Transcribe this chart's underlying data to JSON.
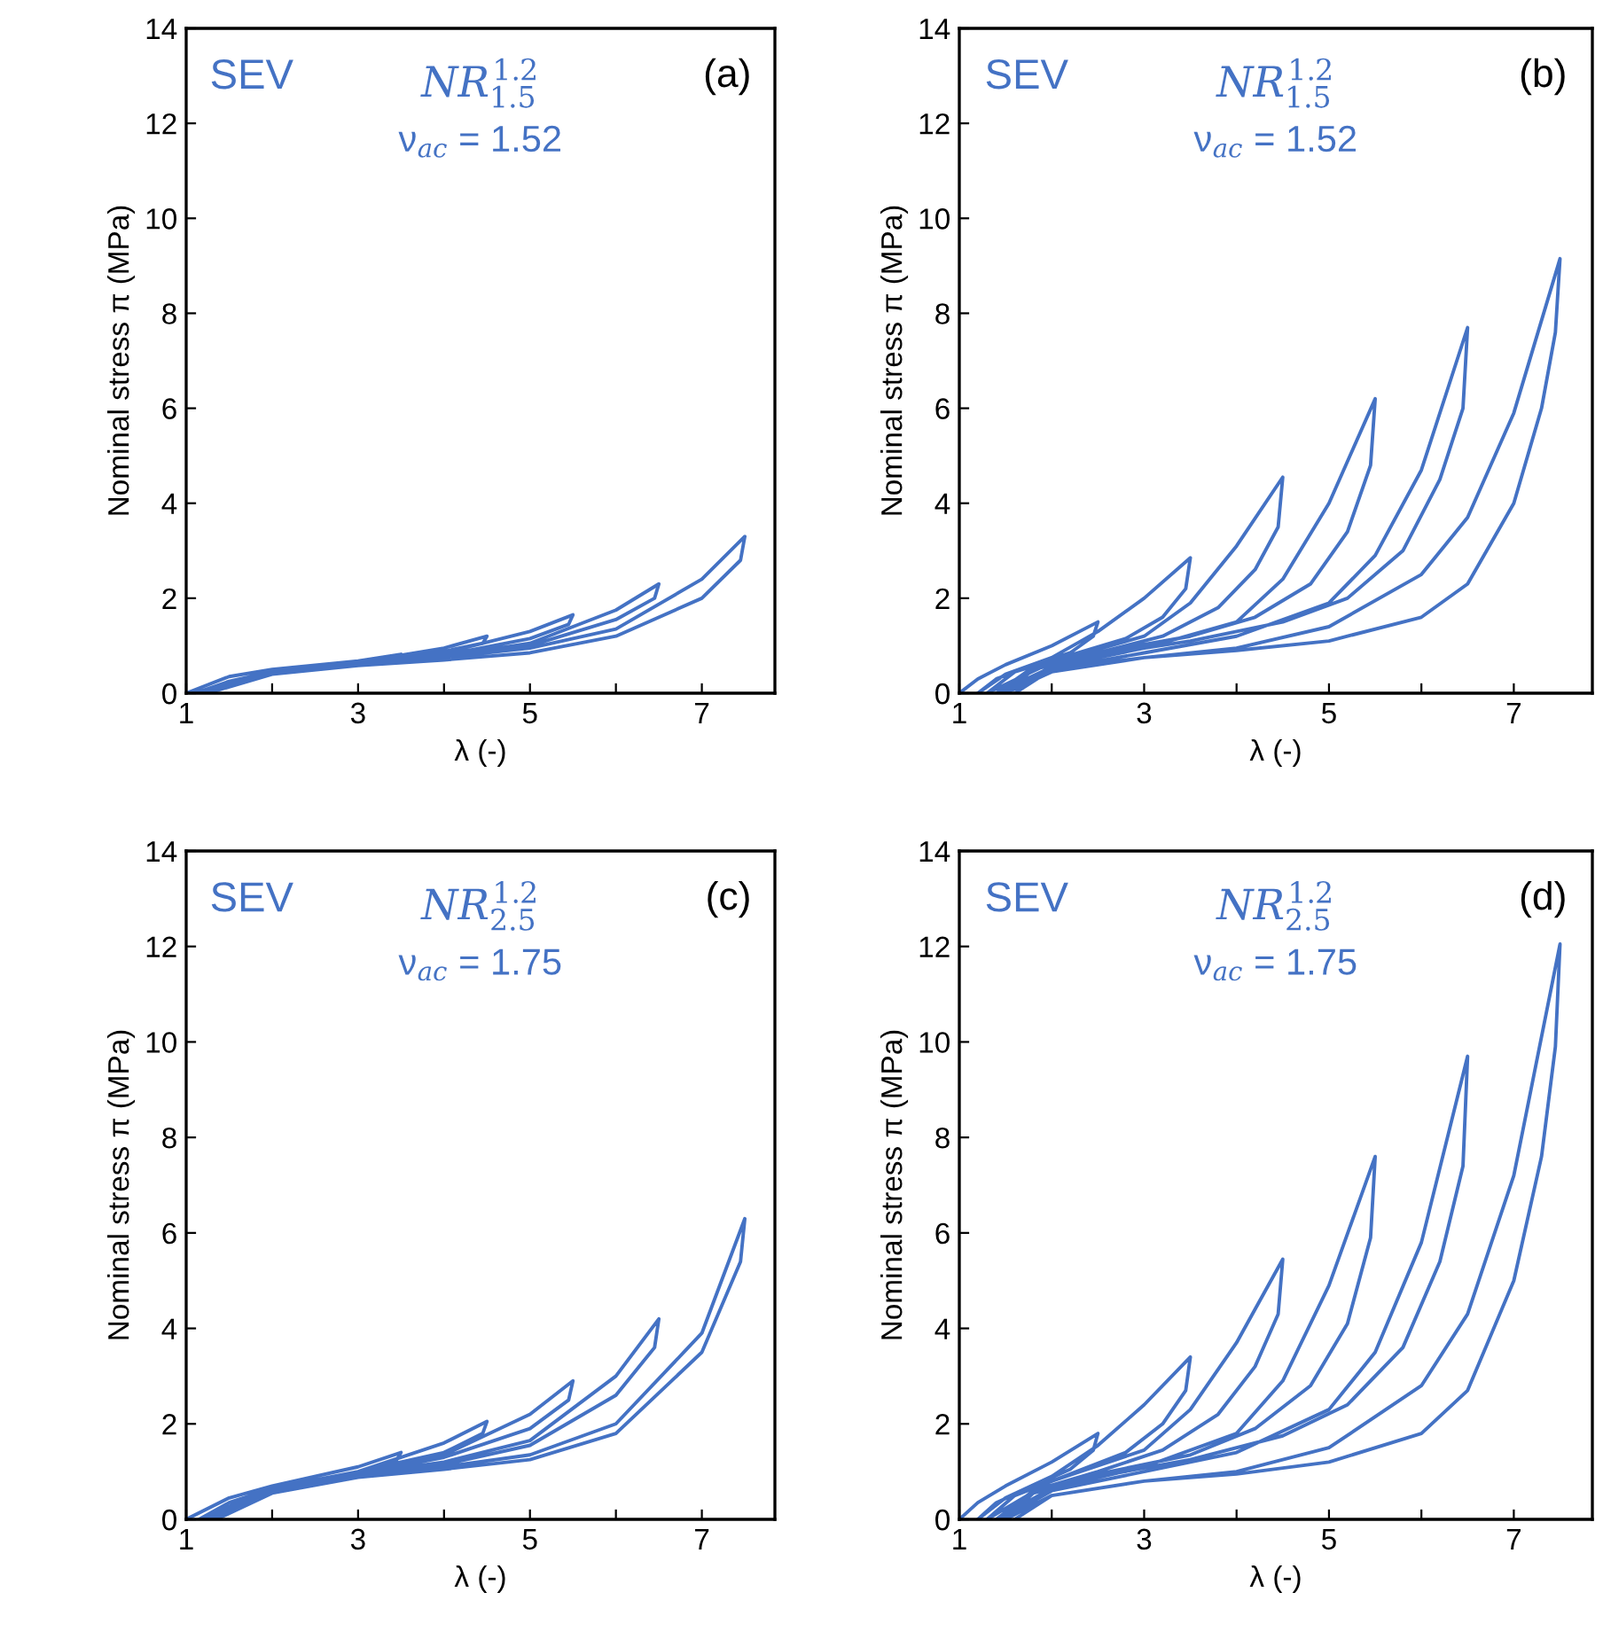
{
  "chart_data": [
    {
      "type": "line",
      "xlabel": "λ (-)",
      "ylabel": "Nominal stress π (MPa)",
      "xlim": [
        1,
        7.85
      ],
      "ylim": [
        0,
        14
      ],
      "xticks": [
        1,
        {
          "value": 2,
          "label": null
        },
        3,
        {
          "value": 4,
          "label": null
        },
        5,
        {
          "value": 6,
          "label": null
        },
        7
      ],
      "yticks": [
        0,
        2,
        4,
        6,
        8,
        10,
        12,
        14
      ],
      "annotations": [
        "SEV",
        "NR$^{1.2}$$_{1.5}$",
        "ν$_{ac}$ = 1.52",
        "(a)"
      ],
      "series": [
        {
          "color": "#4472c4",
          "x": [
            1,
            1.5,
            2,
            3,
            3.5,
            3.45,
            3,
            2,
            1.5,
            1.1,
            2,
            3,
            4,
            4.5,
            4.45,
            4,
            3,
            2,
            1.15,
            2,
            3,
            4,
            5,
            5.5,
            5.45,
            5,
            4,
            3,
            2,
            1.2,
            2,
            3,
            4,
            5,
            6,
            6.5,
            6.45,
            6,
            5,
            4,
            3,
            2,
            1.2,
            2,
            3,
            4,
            5,
            6,
            7,
            7.5,
            7.45,
            7,
            6,
            5,
            4,
            3,
            2,
            1.25
          ],
          "values": [
            0,
            0.35,
            0.5,
            0.68,
            0.82,
            0.75,
            0.65,
            0.45,
            0.25,
            0,
            0.48,
            0.65,
            0.95,
            1.2,
            1.05,
            0.88,
            0.66,
            0.45,
            0,
            0.47,
            0.65,
            0.85,
            1.3,
            1.65,
            1.45,
            1.15,
            0.8,
            0.62,
            0.43,
            0,
            0.45,
            0.62,
            0.78,
            1.05,
            1.75,
            2.3,
            2.0,
            1.55,
            1.0,
            0.78,
            0.6,
            0.42,
            0,
            0.43,
            0.6,
            0.75,
            0.95,
            1.35,
            2.4,
            3.3,
            2.8,
            2.0,
            1.2,
            0.85,
            0.7,
            0.58,
            0.4,
            0
          ]
        }
      ]
    },
    {
      "type": "line",
      "xlabel": "λ (-)",
      "ylabel": "Nominal stress π (MPa)",
      "xlim": [
        1,
        7.85
      ],
      "ylim": [
        0,
        14
      ],
      "xticks": [
        1,
        {
          "value": 2,
          "label": null
        },
        3,
        {
          "value": 4,
          "label": null
        },
        5,
        {
          "value": 6,
          "label": null
        },
        7
      ],
      "yticks": [
        0,
        2,
        4,
        6,
        8,
        10,
        12,
        14
      ],
      "annotations": [
        "SEV",
        "NR$^{1.2}$$_{1.5}$",
        "ν$_{ac}$ = 1.52",
        "(b)"
      ],
      "series": [
        {
          "color": "#4472c4",
          "x": [
            1,
            1.2,
            1.5,
            2,
            2.5,
            2.45,
            2.2,
            1.8,
            1.4,
            1.2,
            1.5,
            2,
            2.5,
            3,
            3.5,
            3.45,
            3.2,
            2.8,
            2.2,
            1.6,
            1.3,
            2,
            3,
            3.5,
            4,
            4.5,
            4.45,
            4.2,
            3.8,
            3.2,
            2.5,
            1.8,
            1.4,
            2,
            3,
            4,
            4.5,
            5,
            5.5,
            5.45,
            5.2,
            4.8,
            4.2,
            3.5,
            2.5,
            1.8,
            1.45,
            2,
            3,
            4,
            5,
            5.5,
            6,
            6.5,
            6.45,
            6.2,
            5.8,
            5.2,
            4.5,
            3.5,
            2.5,
            1.8,
            1.5,
            2,
            3,
            4,
            5,
            6,
            6.5,
            7,
            7.5,
            7.45,
            7.3,
            7,
            6.5,
            6,
            5,
            4,
            3,
            2,
            1.6
          ],
          "values": [
            0,
            0.3,
            0.6,
            1.0,
            1.5,
            1.2,
            0.85,
            0.6,
            0.3,
            0,
            0.4,
            0.75,
            1.3,
            2.0,
            2.85,
            2.2,
            1.6,
            1.15,
            0.8,
            0.45,
            0,
            0.65,
            1.2,
            1.9,
            3.1,
            4.55,
            3.5,
            2.6,
            1.8,
            1.2,
            0.85,
            0.55,
            0,
            0.55,
            0.95,
            1.5,
            2.4,
            4.0,
            6.2,
            4.8,
            3.4,
            2.3,
            1.6,
            1.2,
            0.85,
            0.5,
            0,
            0.5,
            0.85,
            1.2,
            1.9,
            2.9,
            4.7,
            7.7,
            6.0,
            4.5,
            3.0,
            2.0,
            1.5,
            1.1,
            0.8,
            0.5,
            0,
            0.45,
            0.75,
            0.95,
            1.4,
            2.5,
            3.7,
            5.9,
            9.15,
            7.6,
            6.0,
            4.0,
            2.3,
            1.6,
            1.1,
            0.9,
            0.75,
            0.5,
            0
          ]
        }
      ]
    },
    {
      "type": "line",
      "xlabel": "λ (-)",
      "ylabel": "Nominal stress π (MPa)",
      "xlim": [
        1,
        7.85
      ],
      "ylim": [
        0,
        14
      ],
      "xticks": [
        1,
        {
          "value": 2,
          "label": null
        },
        3,
        {
          "value": 4,
          "label": null
        },
        5,
        {
          "value": 6,
          "label": null
        },
        7
      ],
      "yticks": [
        0,
        2,
        4,
        6,
        8,
        10,
        12,
        14
      ],
      "annotations": [
        "SEV",
        "NR$^{1.2}$$_{2.5}$",
        "ν$_{ac}$ = 1.75",
        "(c)"
      ],
      "series": [
        {
          "color": "#4472c4",
          "x": [
            1,
            1.5,
            2,
            3,
            3.5,
            3.45,
            3,
            2,
            1.5,
            1.15,
            2,
            3,
            4,
            4.5,
            4.45,
            4,
            3,
            2,
            1.2,
            2,
            3,
            4,
            5,
            5.5,
            5.45,
            5,
            4,
            3,
            2,
            1.25,
            2,
            3,
            4,
            5,
            6,
            6.5,
            6.45,
            6,
            5,
            4,
            3,
            2,
            1.3,
            2,
            3,
            4,
            5,
            6,
            7,
            7.5,
            7.45,
            7,
            6,
            5,
            4,
            3,
            2,
            1.35
          ],
          "values": [
            0,
            0.45,
            0.7,
            1.1,
            1.4,
            1.25,
            1.0,
            0.65,
            0.35,
            0,
            0.65,
            1.0,
            1.6,
            2.05,
            1.8,
            1.4,
            1.0,
            0.62,
            0,
            0.62,
            0.98,
            1.35,
            2.2,
            2.9,
            2.5,
            1.9,
            1.3,
            0.95,
            0.6,
            0,
            0.6,
            0.95,
            1.2,
            1.65,
            3.0,
            4.2,
            3.6,
            2.6,
            1.55,
            1.15,
            0.92,
            0.58,
            0,
            0.58,
            0.9,
            1.1,
            1.35,
            2.0,
            3.9,
            6.3,
            5.4,
            3.5,
            1.8,
            1.25,
            1.05,
            0.88,
            0.55,
            0
          ]
        }
      ]
    },
    {
      "type": "line",
      "xlabel": "λ (-)",
      "ylabel": "Nominal stress π (MPa)",
      "xlim": [
        1,
        7.85
      ],
      "ylim": [
        0,
        14
      ],
      "xticks": [
        1,
        {
          "value": 2,
          "label": null
        },
        3,
        {
          "value": 4,
          "label": null
        },
        5,
        {
          "value": 6,
          "label": null
        },
        7
      ],
      "yticks": [
        0,
        2,
        4,
        6,
        8,
        10,
        12,
        14
      ],
      "annotations": [
        "SEV",
        "NR$^{1.2}$$_{2.5}$",
        "ν$_{ac}$ = 1.75",
        "(d)"
      ],
      "series": [
        {
          "color": "#4472c4",
          "x": [
            1,
            1.2,
            1.5,
            2,
            2.5,
            2.45,
            2.2,
            1.8,
            1.4,
            1.2,
            1.5,
            2,
            2.5,
            3,
            3.5,
            3.45,
            3.2,
            2.8,
            2.2,
            1.6,
            1.3,
            2,
            3,
            3.5,
            4,
            4.5,
            4.45,
            4.2,
            3.8,
            3.2,
            2.5,
            1.8,
            1.4,
            2,
            3,
            4,
            4.5,
            5,
            5.5,
            5.45,
            5.2,
            4.8,
            4.2,
            3.5,
            2.5,
            1.8,
            1.45,
            2,
            3,
            4,
            5,
            5.5,
            6,
            6.5,
            6.45,
            6.2,
            5.8,
            5.2,
            4.5,
            3.5,
            2.5,
            1.8,
            1.5,
            2,
            3,
            4,
            5,
            6,
            6.5,
            7,
            7.5,
            7.45,
            7.3,
            7,
            6.5,
            6,
            5,
            4,
            3,
            2,
            1.6
          ],
          "values": [
            0,
            0.35,
            0.7,
            1.2,
            1.8,
            1.45,
            1.05,
            0.7,
            0.35,
            0,
            0.45,
            0.9,
            1.55,
            2.4,
            3.4,
            2.7,
            2.0,
            1.4,
            0.95,
            0.5,
            0,
            0.8,
            1.45,
            2.3,
            3.7,
            5.45,
            4.3,
            3.2,
            2.2,
            1.45,
            1.0,
            0.6,
            0,
            0.65,
            1.1,
            1.8,
            2.9,
            4.9,
            7.6,
            5.9,
            4.1,
            2.8,
            1.9,
            1.35,
            0.95,
            0.55,
            0,
            0.6,
            1.0,
            1.4,
            2.3,
            3.5,
            5.8,
            9.7,
            7.4,
            5.4,
            3.6,
            2.4,
            1.75,
            1.25,
            0.9,
            0.55,
            0,
            0.5,
            0.8,
            1.0,
            1.5,
            2.8,
            4.3,
            7.2,
            12.05,
            9.9,
            7.6,
            5.0,
            2.7,
            1.8,
            1.2,
            0.95,
            0.8,
            0.5,
            0
          ]
        }
      ]
    }
  ]
}
